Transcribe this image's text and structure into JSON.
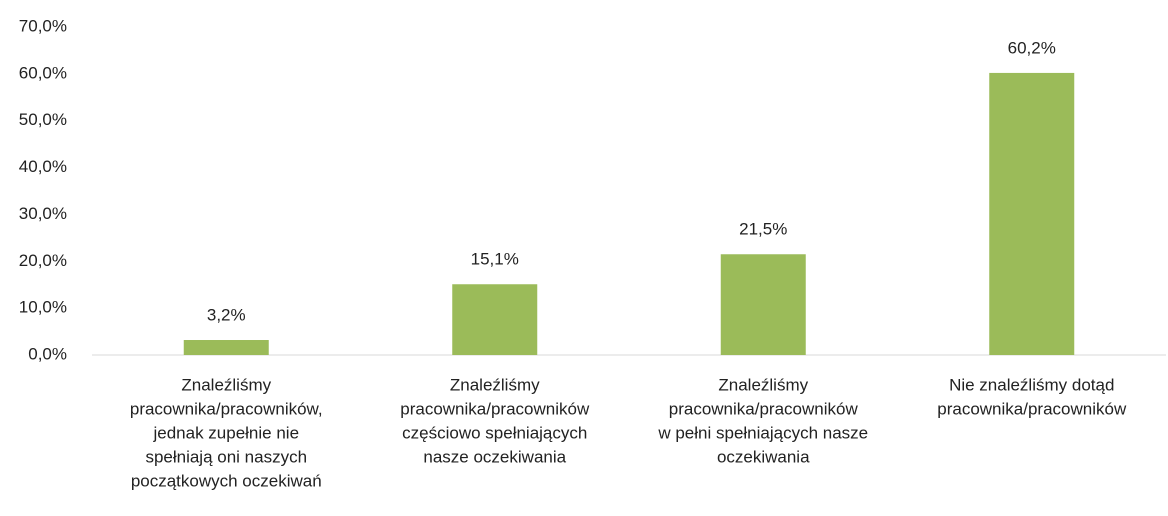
{
  "chart_data": {
    "type": "bar",
    "categories": [
      [
        "Znaleźliśmy",
        "pracownika/pracowników,",
        "jednak zupełnie nie",
        "spełniają oni naszych",
        "początkowych oczekiwań"
      ],
      [
        "Znaleźliśmy",
        "pracownika/pracowników",
        "częściowo spełniających",
        "nasze oczekiwania"
      ],
      [
        "Znaleźliśmy",
        "pracownika/pracowników",
        "w pełni spełniających nasze",
        "oczekiwania"
      ],
      [
        "Nie znaleźliśmy dotąd",
        "pracownika/pracowników"
      ]
    ],
    "values": [
      3.2,
      15.1,
      21.5,
      60.2
    ],
    "value_labels": [
      "3,2%",
      "15,1%",
      "21,5%",
      "60,2%"
    ],
    "color": "#9bbb59",
    "ylim": [
      0,
      70
    ],
    "yticks": [
      {
        "value": 0,
        "label": "0,0%"
      },
      {
        "value": 10,
        "label": "10,0%"
      },
      {
        "value": 20,
        "label": "20,0%"
      },
      {
        "value": 30,
        "label": "30,0%"
      },
      {
        "value": 40,
        "label": "40,0%"
      },
      {
        "value": 50,
        "label": "50,0%"
      },
      {
        "value": 60,
        "label": "60,0%"
      },
      {
        "value": 70,
        "label": "70,0%"
      }
    ],
    "grid": false
  }
}
